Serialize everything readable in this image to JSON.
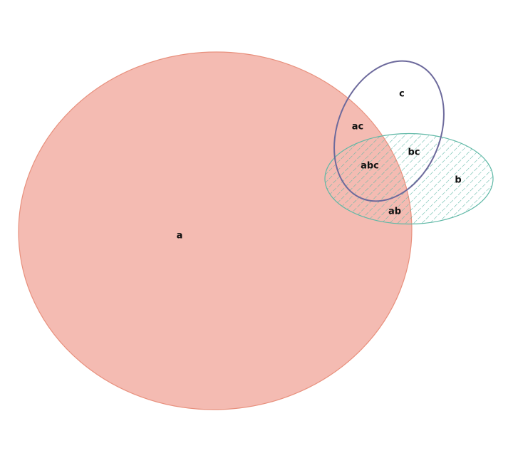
{
  "diagram": {
    "type": "euler-venn",
    "sets": [
      {
        "name": "a",
        "color": "#ee9282",
        "fill_opacity": 0.62,
        "pattern": "solid"
      },
      {
        "name": "b",
        "color": "#5fb8a6",
        "fill_opacity": 0.0,
        "pattern": "diagonal-hatch"
      },
      {
        "name": "c",
        "color": "#6d6a9c",
        "fill_opacity": 0.0,
        "pattern": "outline"
      }
    ],
    "regions": [
      {
        "label": "a"
      },
      {
        "label": "b"
      },
      {
        "label": "c"
      },
      {
        "label": "ab"
      },
      {
        "label": "ac"
      },
      {
        "label": "bc"
      },
      {
        "label": "abc"
      }
    ]
  }
}
